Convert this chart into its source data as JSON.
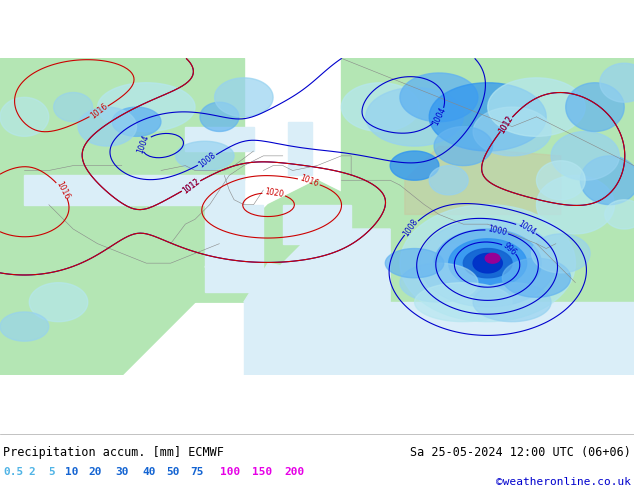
{
  "title_left": "Precipitation accum. [mm] ECMWF",
  "title_right": "Sa 25-05-2024 12:00 UTC (06+06)",
  "credit": "©weatheronline.co.uk",
  "legend_values": [
    0.5,
    2,
    5,
    10,
    20,
    30,
    40,
    50,
    75,
    100,
    150,
    200
  ],
  "legend_label_colors": [
    "#50b4e6",
    "#50b4e6",
    "#50b4e6",
    "#1464d2",
    "#1464d2",
    "#1464d2",
    "#1464d2",
    "#1464d2",
    "#1464d2",
    "#e600e6",
    "#e600e6",
    "#e600e6"
  ],
  "precip_colors": [
    [
      0.5,
      "#c8f0f0"
    ],
    [
      2,
      "#96d2f0"
    ],
    [
      5,
      "#64b4f0"
    ],
    [
      10,
      "#3296f0"
    ],
    [
      20,
      "#1464d2"
    ],
    [
      30,
      "#1496d2"
    ],
    [
      40,
      "#14b4d2"
    ],
    [
      50,
      "#14d2b4"
    ],
    [
      75,
      "#00c800"
    ],
    [
      100,
      "#ff00ff"
    ],
    [
      150,
      "#c800c8"
    ],
    [
      200,
      "#960096"
    ]
  ],
  "land_color": "#b4e6b4",
  "sea_color": "#daeef8",
  "mountain_color": "#c8c8a0",
  "bg_color": "#ffffff",
  "blue_contour_color": "#0000cd",
  "red_contour_color": "#cc0000",
  "fig_width": 6.34,
  "fig_height": 4.9,
  "dpi": 100,
  "extent": [
    -10,
    120,
    -5,
    60
  ],
  "title_fontsize": 8.5,
  "legend_fontsize": 8.0,
  "credit_color": "#0000cd"
}
